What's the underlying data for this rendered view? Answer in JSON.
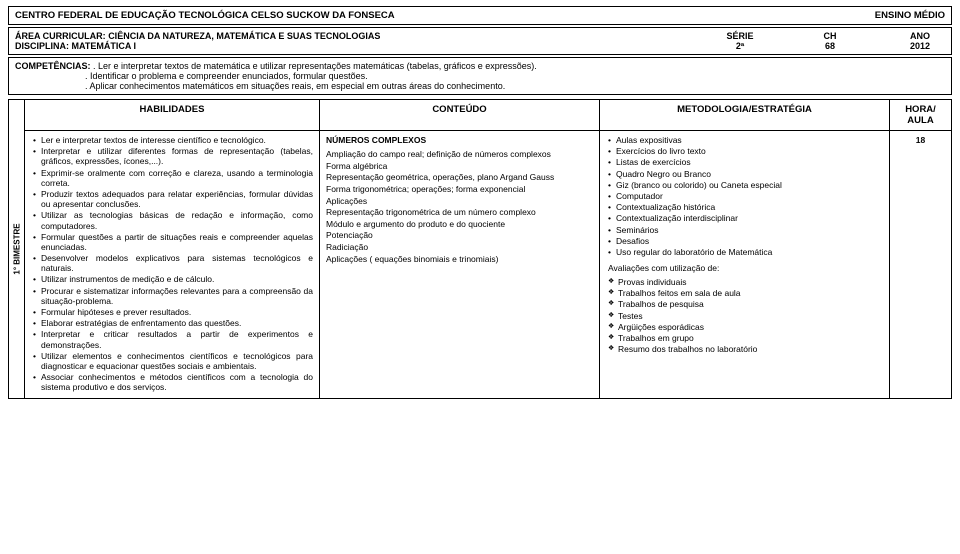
{
  "header": {
    "institution": "CENTRO FEDERAL DE EDUCAÇÃO TECNOLÓGICA CELSO SUCKOW DA FONSECA",
    "level": "ENSINO MÉDIO"
  },
  "info": {
    "area_label": "ÁREA CURRICULAR:",
    "area_value": "CIÊNCIA DA NATUREZA, MATEMÁTICA E SUAS TECNOLOGIAS",
    "disciplina_label": "DISCIPLINA:",
    "disciplina_value": "MATEMÁTICA I",
    "serie_label": "SÉRIE",
    "serie_value": "2ª",
    "ch_label": "CH",
    "ch_value": "68",
    "ano_label": "ANO",
    "ano_value": "2012"
  },
  "competencias": {
    "label": "COMPETÊNCIAS:",
    "lines": [
      ". Ler e interpretar textos de matemática e utilizar representações matemáticas (tabelas, gráficos e expressões).",
      ". Identificar o problema e compreender enunciados, formular questões.",
      ". Aplicar conhecimentos matemáticos em situações reais, em especial em outras áreas do conhecimento."
    ]
  },
  "bimestre_label": "1° BIMESTRE",
  "columns": {
    "habilidades": "HABILIDADES",
    "conteudo": "CONTEÚDO",
    "metodologia": "METODOLOGIA/ESTRATÉGIA",
    "hora": "HORA/ AULA"
  },
  "habilidades": [
    "Ler e interpretar textos de interesse científico e tecnológico.",
    "Interpretar e utilizar diferentes formas de representação (tabelas, gráficos, expressões, ícones,...).",
    "Exprimir-se oralmente com correção e clareza, usando a terminologia correta.",
    "Produzir textos adequados para relatar experiências, formular dúvidas ou apresentar conclusões.",
    "Utilizar as tecnologias básicas de redação e informação, como computadores.",
    "Formular questões a partir de situações reais e compreender aquelas enunciadas.",
    "Desenvolver modelos explicativos para sistemas tecnológicos e naturais.",
    "Utilizar instrumentos de medição e de cálculo.",
    "Procurar e sistematizar informações relevantes para a compreensão da situação-problema.",
    "Formular hipóteses e prever resultados.",
    "Elaborar estratégias de enfrentamento das questões.",
    "Interpretar e criticar resultados a partir de experimentos e demonstrações.",
    "Utilizar elementos e conhecimentos científicos e tecnológicos para diagnosticar e equacionar questões sociais e ambientais.",
    "Associar conhecimentos e métodos científicos com a tecnologia do sistema produtivo e dos serviços."
  ],
  "conteudo": {
    "title": "NÚMEROS COMPLEXOS",
    "items": [
      "Ampliação do campo real; definição de números complexos",
      "Forma algébrica",
      "Representação geométrica, operações, plano Argand Gauss",
      "Forma trigonométrica; operações; forma exponencial",
      "Aplicações",
      "Representação trigonométrica de um número complexo",
      "Módulo e argumento do produto e do quociente",
      "Potenciação",
      "Radiciação",
      "Aplicações ( equações binomiais e trinomiais)"
    ]
  },
  "metodologia": {
    "bullets": [
      "Aulas expositivas",
      "Exercícios do livro texto",
      "Listas de exercícios",
      "Quadro Negro ou Branco",
      "Giz (branco ou colorido) ou Caneta especial",
      "Computador",
      "Contextualização histórica",
      "Contextualização interdisciplinar",
      "Seminários",
      "Desafios",
      "Uso regular do laboratório de Matemática"
    ],
    "aval_title": "Avaliações com utilização de:",
    "diamonds": [
      "Provas individuais",
      "Trabalhos feitos em sala de aula",
      "Trabalhos de pesquisa",
      "Testes",
      "Argüições esporádicas",
      "Trabalhos em grupo",
      "Resumo dos trabalhos no laboratório"
    ]
  },
  "hora_value": "18"
}
